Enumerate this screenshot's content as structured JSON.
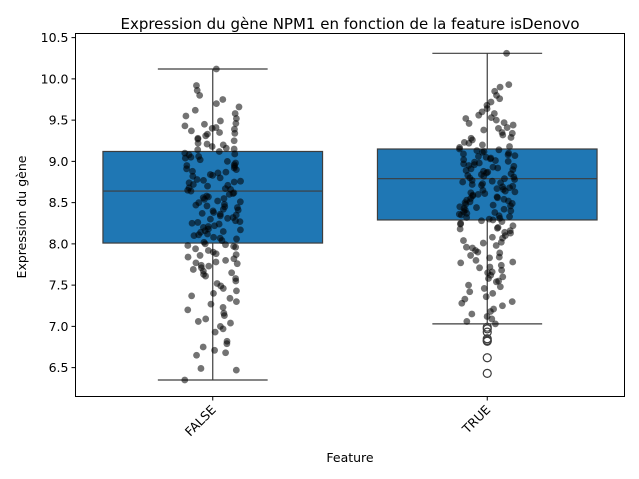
{
  "chart_data": {
    "type": "box",
    "title": "Expression du gène NPM1 en fonction de la feature isDenovo",
    "xlabel": "Feature",
    "ylabel": "Expression du gène",
    "categories": [
      "FALSE",
      "TRUE"
    ],
    "ylim": [
      6.15,
      10.55
    ],
    "yticks": [
      "6.5",
      "7.0",
      "7.5",
      "8.0",
      "8.5",
      "9.0",
      "9.5",
      "10.0",
      "10.5"
    ],
    "box_color": "#1f77b4",
    "point_color": "#000000",
    "grid": false,
    "boxes": [
      {
        "name": "FALSE",
        "whisker_low": 6.35,
        "q1": 8.01,
        "median": 8.64,
        "q3": 9.12,
        "whisker_high": 10.12,
        "outliers": []
      },
      {
        "name": "TRUE",
        "whisker_low": 7.03,
        "q1": 8.29,
        "median": 8.79,
        "q3": 9.15,
        "whisker_high": 10.31,
        "outliers": [
          6.99,
          6.97,
          6.93,
          6.85,
          6.83,
          6.82,
          6.62,
          6.43
        ]
      }
    ],
    "points": {
      "FALSE": [
        6.35,
        6.47,
        6.49,
        6.65,
        6.68,
        6.71,
        6.75,
        6.79,
        6.82,
        6.93,
        6.97,
        7.0,
        7.04,
        7.06,
        7.09,
        7.13,
        7.16,
        7.2,
        7.23,
        7.27,
        7.3,
        7.34,
        7.37,
        7.4,
        7.43,
        7.46,
        7.49,
        7.52,
        7.55,
        7.58,
        7.61,
        7.63,
        7.65,
        7.67,
        7.69,
        7.71,
        7.73,
        7.74,
        7.76,
        7.78,
        7.8,
        7.82,
        7.84,
        7.86,
        7.88,
        7.9,
        7.92,
        7.94,
        7.96,
        7.98,
        8.0,
        8.02,
        8.04,
        8.06,
        8.08,
        8.1,
        8.12,
        8.14,
        8.16,
        8.18,
        8.2,
        8.22,
        8.24,
        8.26,
        8.28,
        8.3,
        8.32,
        8.34,
        8.36,
        8.38,
        8.4,
        8.42,
        8.44,
        8.46,
        8.48,
        8.5,
        8.52,
        8.54,
        8.56,
        8.58,
        8.6,
        8.62,
        8.64,
        8.66,
        8.68,
        8.7,
        8.72,
        8.74,
        8.76,
        8.78,
        8.8,
        8.82,
        8.84,
        8.86,
        8.88,
        8.9,
        8.92,
        8.94,
        8.96,
        8.98,
        9.0,
        9.02,
        9.04,
        9.06,
        9.08,
        9.1,
        9.12,
        9.14,
        9.16,
        9.18,
        9.2,
        9.22,
        9.25,
        9.28,
        9.31,
        9.34,
        9.37,
        9.4,
        9.43,
        9.46,
        9.49,
        9.52,
        9.55,
        9.58,
        9.62,
        9.66,
        9.7,
        9.75,
        9.8,
        9.86,
        9.92,
        10.12,
        8.65,
        8.71,
        8.55,
        8.45,
        8.83,
        8.91,
        9.05,
        8.35,
        8.25,
        8.15,
        9.09,
        8.95,
        8.75,
        8.61,
        8.51,
        8.41,
        8.31,
        8.21,
        8.11,
        7.99,
        9.15,
        9.21,
        9.27,
        9.33,
        9.39,
        9.41,
        9.45,
        9.35,
        8.87,
        8.77,
        8.67,
        8.57,
        8.47,
        8.37,
        8.27,
        8.17,
        8.07,
        7.97,
        7.87,
        7.77
      ],
      "TRUE": [
        7.03,
        7.06,
        7.12,
        7.18,
        7.25,
        7.3,
        7.36,
        7.42,
        7.46,
        7.5,
        7.54,
        7.58,
        7.62,
        7.65,
        7.68,
        7.71,
        7.74,
        7.77,
        7.8,
        7.83,
        7.86,
        7.89,
        7.92,
        7.95,
        7.98,
        8.01,
        8.04,
        8.07,
        8.1,
        8.13,
        8.16,
        8.19,
        8.22,
        8.25,
        8.27,
        8.29,
        8.31,
        8.33,
        8.35,
        8.37,
        8.39,
        8.41,
        8.43,
        8.45,
        8.47,
        8.49,
        8.51,
        8.53,
        8.55,
        8.57,
        8.59,
        8.61,
        8.63,
        8.65,
        8.67,
        8.69,
        8.71,
        8.73,
        8.75,
        8.77,
        8.79,
        8.81,
        8.83,
        8.85,
        8.87,
        8.89,
        8.91,
        8.93,
        8.95,
        8.97,
        8.99,
        9.01,
        9.03,
        9.05,
        9.07,
        9.09,
        9.11,
        9.13,
        9.15,
        9.17,
        9.2,
        9.23,
        9.26,
        9.29,
        9.32,
        9.35,
        9.38,
        9.41,
        9.44,
        9.47,
        9.5,
        9.53,
        9.56,
        9.6,
        9.64,
        9.68,
        9.72,
        9.76,
        9.8,
        9.85,
        9.9,
        9.93,
        10.31,
        8.78,
        8.82,
        8.86,
        8.9,
        8.94,
        8.98,
        9.02,
        9.06,
        9.1,
        9.14,
        8.74,
        8.7,
        8.66,
        8.62,
        8.58,
        8.54,
        8.5,
        8.46,
        8.42,
        8.38,
        8.34,
        8.3,
        9.12,
        9.08,
        9.04,
        9.0,
        8.96,
        8.92,
        8.88,
        8.84,
        8.8,
        8.76,
        8.72,
        8.68,
        8.64,
        8.6,
        8.56,
        8.52,
        8.48,
        8.44,
        8.4,
        8.36,
        8.32,
        8.28,
        8.24,
        8.2,
        9.18,
        9.22,
        9.28,
        9.34,
        9.4,
        9.46,
        9.52,
        9.58,
        8.18,
        8.14,
        8.08,
        8.02,
        7.96,
        7.9,
        7.84,
        7.78,
        7.72,
        7.66,
        7.6,
        7.55,
        7.48,
        7.4,
        7.33,
        7.28,
        7.21,
        7.15,
        7.09
      ]
    }
  }
}
